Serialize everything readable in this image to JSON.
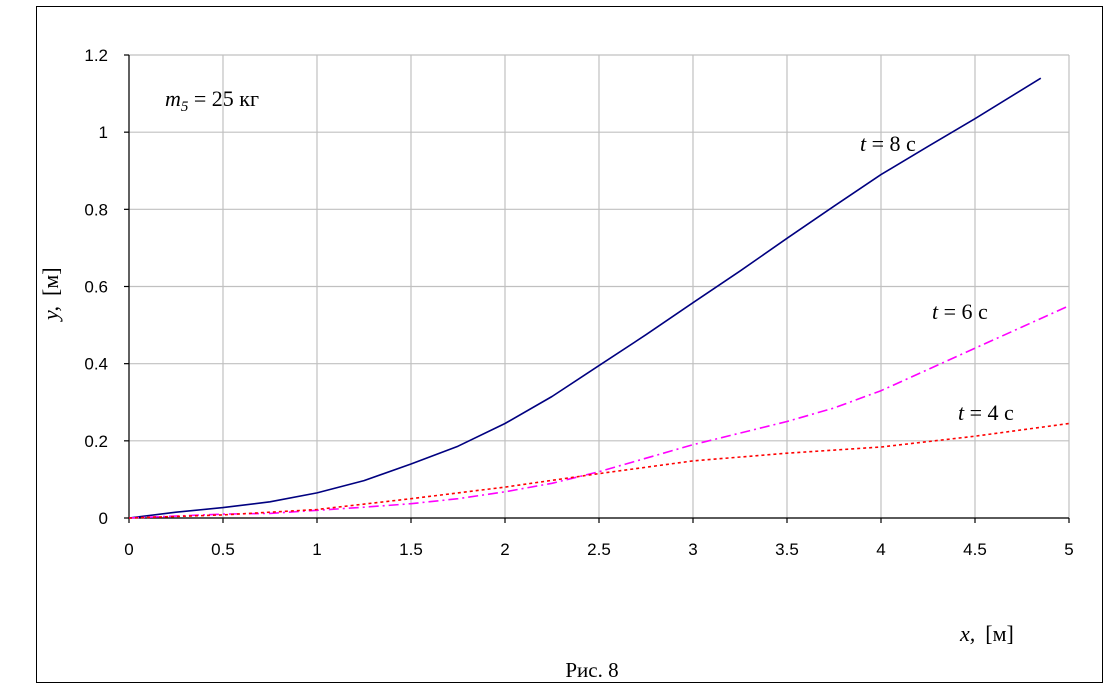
{
  "chart_data": {
    "type": "line",
    "title": "",
    "annotation": {
      "var": "m",
      "sub": "5",
      "rest": " = 25 кг"
    },
    "xlabel": {
      "var": "x,",
      "unit": "[м]"
    },
    "ylabel": {
      "var": "y,",
      "unit": "[м]"
    },
    "caption": "Рис. 8",
    "xlim": [
      0,
      5
    ],
    "ylim": [
      0,
      1.2
    ],
    "xticks": [
      "0",
      "0.5",
      "1",
      "1.5",
      "2",
      "2.5",
      "3",
      "3.5",
      "4",
      "4.5",
      "5"
    ],
    "yticks": [
      "0",
      "0.2",
      "0.4",
      "0.6",
      "0.8",
      "1",
      "1.2"
    ],
    "grid": true,
    "series": [
      {
        "name": "t = 8 с",
        "label_var": "t",
        "label_rest": " = 8 с",
        "color": "#000080",
        "dash": "",
        "x": [
          0,
          0.25,
          0.5,
          0.75,
          1.0,
          1.25,
          1.5,
          1.75,
          2.0,
          2.25,
          2.5,
          2.75,
          3.0,
          3.25,
          3.5,
          3.75,
          4.0,
          4.25,
          4.5,
          4.85
        ],
        "y": [
          0,
          0.015,
          0.027,
          0.042,
          0.065,
          0.097,
          0.14,
          0.186,
          0.245,
          0.315,
          0.395,
          0.475,
          0.558,
          0.64,
          0.725,
          0.808,
          0.89,
          0.963,
          1.035,
          1.14
        ]
      },
      {
        "name": "t = 6 с",
        "label_var": "t",
        "label_rest": " = 6 с",
        "color": "#ff00ff",
        "dash": "10,4,2,4",
        "x": [
          0,
          0.5,
          0.75,
          1.0,
          1.25,
          1.5,
          1.75,
          2.0,
          2.25,
          2.5,
          2.75,
          3.0,
          3.25,
          3.5,
          3.75,
          4.0,
          4.25,
          4.5,
          4.75,
          5.0
        ],
        "y": [
          0,
          0.01,
          0.012,
          0.02,
          0.028,
          0.037,
          0.05,
          0.068,
          0.09,
          0.12,
          0.155,
          0.19,
          0.22,
          0.25,
          0.285,
          0.33,
          0.385,
          0.44,
          0.495,
          0.55
        ]
      },
      {
        "name": "t = 4 с",
        "label_var": "t",
        "label_rest": " = 4 с",
        "color": "#ff0000",
        "dash": "3,3",
        "x": [
          0,
          0.5,
          1.0,
          1.5,
          2.0,
          2.5,
          3.0,
          3.5,
          4.0,
          4.5,
          5.0
        ],
        "y": [
          0,
          0.008,
          0.022,
          0.05,
          0.08,
          0.115,
          0.148,
          0.168,
          0.184,
          0.212,
          0.245
        ]
      }
    ]
  }
}
